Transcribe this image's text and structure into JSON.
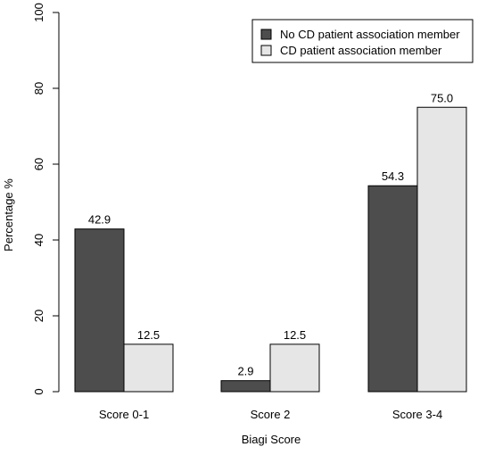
{
  "chart_data": {
    "type": "bar",
    "title": "",
    "xlabel": "Biagi Score",
    "ylabel": "Percentage %",
    "ylim": [
      0,
      100
    ],
    "yticks": [
      "0",
      "20",
      "40",
      "60",
      "80",
      "100"
    ],
    "categories": [
      "Score 0-1",
      "Score 2",
      "Score 3-4"
    ],
    "series": [
      {
        "name": "No CD patient association member",
        "color": "#4d4d4d",
        "values": [
          42.9,
          2.9,
          54.3
        ],
        "labels": [
          "42.9",
          "2.9",
          "54.3"
        ]
      },
      {
        "name": "CD patient association member",
        "color": "#e6e6e6",
        "values": [
          12.5,
          12.5,
          75.0
        ],
        "labels": [
          "12.5",
          "12.5",
          "75.0"
        ]
      }
    ],
    "grid": false,
    "legend_position": "top-right"
  }
}
